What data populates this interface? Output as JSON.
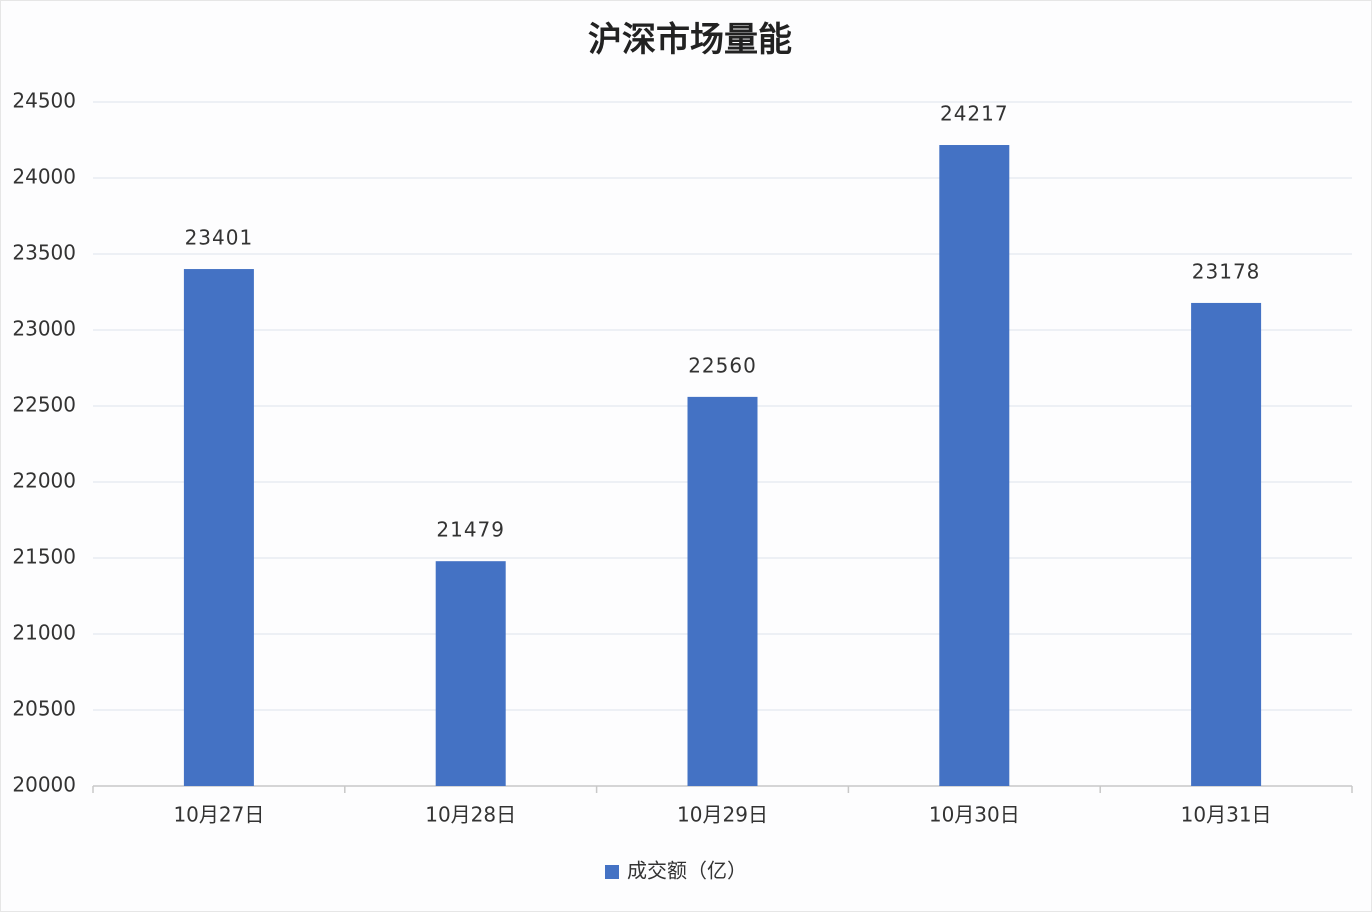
{
  "chart_data": {
    "type": "bar",
    "title": "沪深市场量能",
    "categories": [
      "10月27日",
      "10月28日",
      "10月29日",
      "10月30日",
      "10月31日"
    ],
    "series": [
      {
        "name": "成交额（亿）",
        "color": "#4472c4",
        "values": [
          23401,
          21479,
          22560,
          24217,
          23178
        ]
      }
    ],
    "ylim": [
      20000,
      24500
    ],
    "yticks": [
      20000,
      20500,
      21000,
      21500,
      22000,
      22500,
      23000,
      23500,
      24000,
      24500
    ],
    "grid": true,
    "legend": "bottom",
    "data_labels": true
  }
}
